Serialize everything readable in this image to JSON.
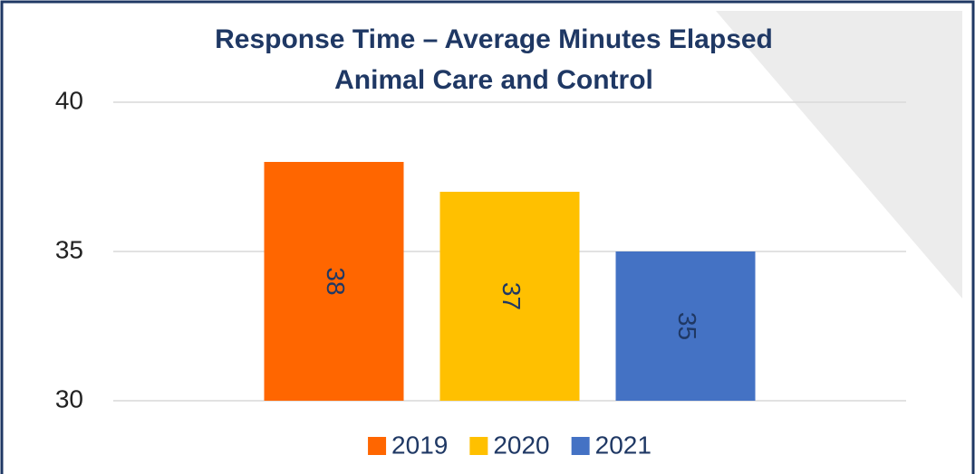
{
  "chart_data": {
    "type": "bar",
    "title": "Response Time – Average Minutes Elapsed",
    "subtitle": "Animal Care and Control",
    "categories": [
      null
    ],
    "series": [
      {
        "name": "2019",
        "color": "#ff6600",
        "values": [
          38
        ]
      },
      {
        "name": "2020",
        "color": "#ffc000",
        "values": [
          37
        ]
      },
      {
        "name": "2021",
        "color": "#4472c4",
        "values": [
          35
        ]
      }
    ],
    "ylim": [
      30,
      40
    ],
    "yticks": [
      30,
      35,
      40
    ],
    "grid": true,
    "legend": "bottom"
  }
}
